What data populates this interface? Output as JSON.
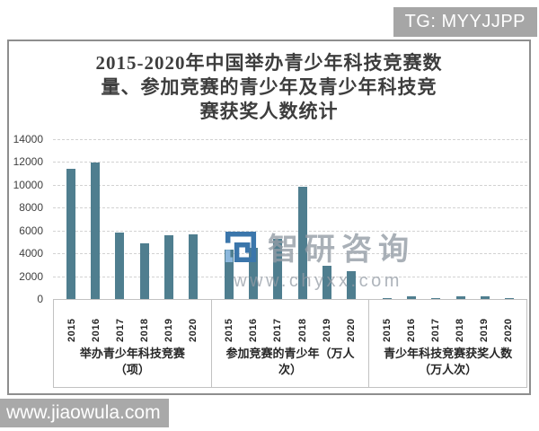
{
  "badge": {
    "text": "TG: MYYJJPP"
  },
  "title": {
    "line1": "2015-2020年中国举办青少年科技竞赛数",
    "line2": "量、参加竞赛的青少年及青少年科技竞",
    "line3": "赛获奖人数统计"
  },
  "watermark": {
    "brand": "智研咨询",
    "url": "www.chyxx.com",
    "logo_dark_color": "#3b76ab",
    "logo_light_color": "#8cb8dd"
  },
  "footer": {
    "url": "www.jiaowula.com"
  },
  "chart_data": {
    "type": "bar",
    "title": "2015-2020年中国举办青少年科技竞赛数量、参加竞赛的青少年及青少年科技竞赛获奖人数统计",
    "categories": [
      "2015",
      "2016",
      "2017",
      "2018",
      "2019",
      "2020"
    ],
    "groups": [
      {
        "label": "举办青少年科技竞赛（项）",
        "label_line1": "举办青少年科技竞赛",
        "label_line2": "（项）",
        "values": [
          11400,
          11950,
          5800,
          4850,
          5600,
          5700
        ]
      },
      {
        "label": "参加竞赛的青少年（万人次）",
        "label_line1": "参加竞赛的青少年（万人",
        "label_line2": "次）",
        "values": [
          4350,
          4450,
          5300,
          9800,
          2900,
          2450
        ]
      },
      {
        "label": "青少年科技竞赛获奖人数（万人次）",
        "label_line1": "青少年科技竞赛获奖人数",
        "label_line2": "（万人次）",
        "values": [
          60,
          200,
          60,
          200,
          200,
          60
        ]
      }
    ],
    "ylim": [
      0,
      14000
    ],
    "yticks": [
      0,
      2000,
      4000,
      6000,
      8000,
      10000,
      12000,
      14000
    ],
    "bar_color": "#4f7e8f",
    "grid": true,
    "legend_position": "none",
    "xlabel": "",
    "ylabel": ""
  }
}
